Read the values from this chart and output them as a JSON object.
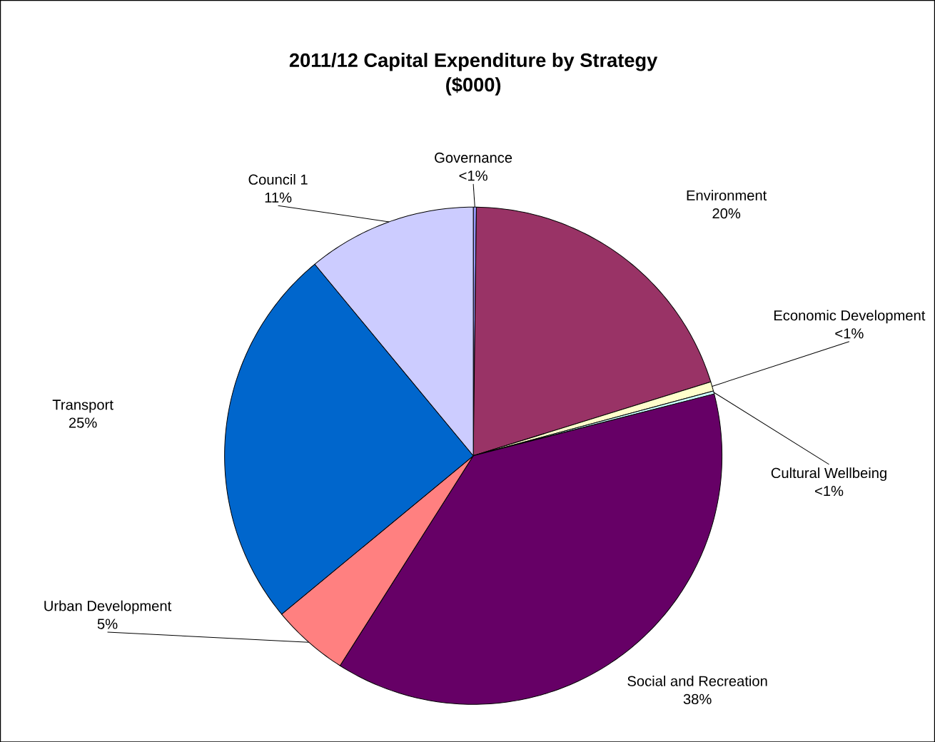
{
  "chart_data": {
    "type": "pie",
    "title": "2011/12 Capital Expenditure by Strategy",
    "subtitle": "($000)",
    "categories": [
      "Governance",
      "Environment",
      "Economic Development",
      "Cultural Wellbeing",
      "Social and Recreation",
      "Urban Development",
      "Transport",
      "Council 1"
    ],
    "values": [
      0.2,
      20,
      0.6,
      0.2,
      38,
      5,
      25,
      11
    ],
    "value_labels": [
      "<1%",
      "20%",
      "<1%",
      "<1%",
      "38%",
      "5%",
      "25%",
      "11%"
    ],
    "colors": [
      "#9999ff",
      "#993366",
      "#ffffcc",
      "#ccffff",
      "#660066",
      "#ff8080",
      "#0066cc",
      "#ccccff"
    ]
  }
}
